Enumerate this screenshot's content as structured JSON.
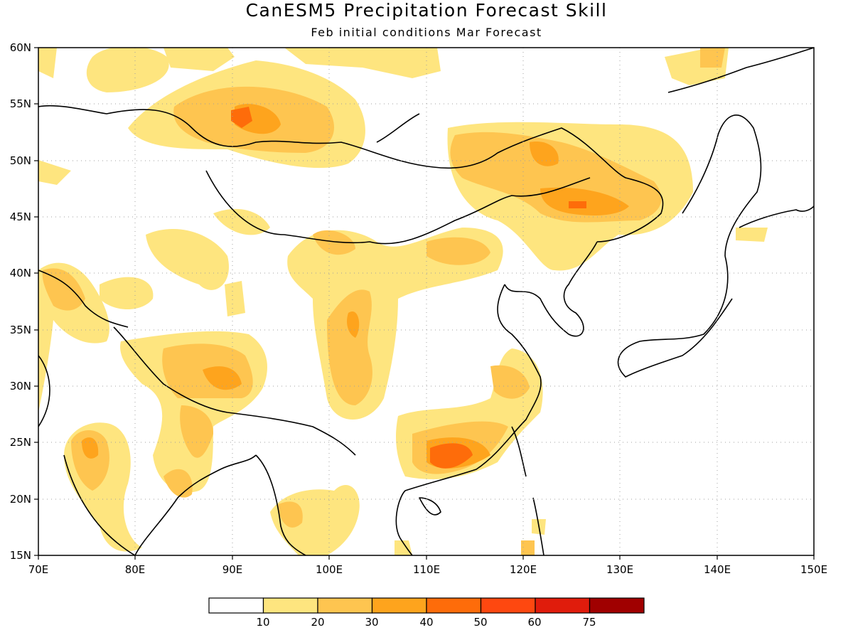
{
  "title": "CanESM5 Precipitation Forecast Skill",
  "subtitle": "Feb initial conditions  Mar Forecast",
  "axes": {
    "lon_min": 70,
    "lon_max": 150,
    "lat_min": 15,
    "lat_max": 60,
    "lon_ticks": [
      "70E",
      "80E",
      "90E",
      "100E",
      "110E",
      "120E",
      "130E",
      "140E",
      "150E"
    ],
    "lat_ticks": [
      "15N",
      "20N",
      "25N",
      "30N",
      "35N",
      "40N",
      "45N",
      "50N",
      "55N",
      "60N"
    ],
    "grid": "dotted"
  },
  "legend": {
    "position": "bottom-center",
    "labels": [
      "10",
      "20",
      "30",
      "40",
      "50",
      "60",
      "75"
    ],
    "colors": [
      "#ffffff",
      "#fee57f",
      "#fec550",
      "#fea41d",
      "#fe6c0a",
      "#fe4810",
      "#e01c0c",
      "#a00000"
    ]
  },
  "colors": {
    "border": "#000000",
    "grid": "#a0a0a0"
  }
}
